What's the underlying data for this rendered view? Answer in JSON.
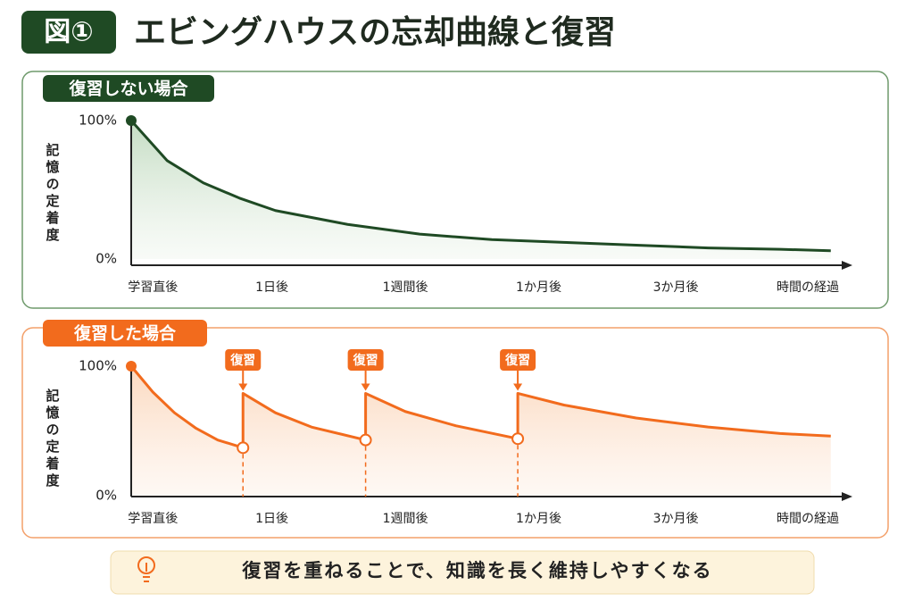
{
  "figure_label": "図①",
  "title": "エビングハウスの忘却曲線と復習",
  "chart_data": [
    {
      "type": "line",
      "title": "復習しない場合",
      "ylabel": "記憶の定着度",
      "xlabel": "時間の経過",
      "color": "#1f4a24",
      "area": true,
      "xlim": [
        0,
        100
      ],
      "ylim": [
        0,
        100
      ],
      "xticks": [
        {
          "value": 3,
          "label": "学習直後"
        },
        {
          "value": 19.5,
          "label": "1日後"
        },
        {
          "value": 38,
          "label": "1週間後"
        },
        {
          "value": 56.5,
          "label": "1か月後"
        },
        {
          "value": 75.5,
          "label": "3か月後"
        }
      ],
      "yticks": [
        {
          "value": 0,
          "label": "0%"
        },
        {
          "value": 100,
          "label": "100%"
        }
      ],
      "x": [
        0,
        5,
        10,
        15,
        20,
        30,
        40,
        50,
        60,
        70,
        80,
        90,
        97
      ],
      "values": [
        100,
        71,
        55,
        44,
        35,
        25,
        18,
        14,
        12,
        10,
        8,
        7,
        6
      ]
    },
    {
      "type": "line",
      "title": "復習した場合",
      "ylabel": "記憶の定着度",
      "xlabel": "時間の経過",
      "color": "#f26b1d",
      "area": true,
      "xlim": [
        0,
        100
      ],
      "ylim": [
        0,
        100
      ],
      "xticks": [
        {
          "value": 3,
          "label": "学習直後"
        },
        {
          "value": 19.5,
          "label": "1日後"
        },
        {
          "value": 38,
          "label": "1週間後"
        },
        {
          "value": 56.5,
          "label": "1か月後"
        },
        {
          "value": 75.5,
          "label": "3か月後"
        }
      ],
      "yticks": [
        {
          "value": 0,
          "label": "0%"
        },
        {
          "value": 100,
          "label": "100%"
        }
      ],
      "x": [
        0,
        3,
        6,
        9,
        12,
        15.5,
        15.5,
        20,
        25,
        32.5,
        32.5,
        38,
        45,
        53.6,
        53.6,
        60,
        70,
        80,
        90,
        97
      ],
      "values": [
        100,
        80,
        64,
        52,
        43,
        37,
        79,
        64,
        53,
        43,
        79,
        65,
        54,
        44,
        79,
        70,
        60,
        53,
        48,
        46
      ],
      "annotations": [
        {
          "x": 15.5,
          "label": "復習"
        },
        {
          "x": 32.5,
          "label": "復習"
        },
        {
          "x": 53.6,
          "label": "復習"
        }
      ]
    }
  ],
  "footer": "復習を重ねることで、知識を長く維持しやすくなる"
}
